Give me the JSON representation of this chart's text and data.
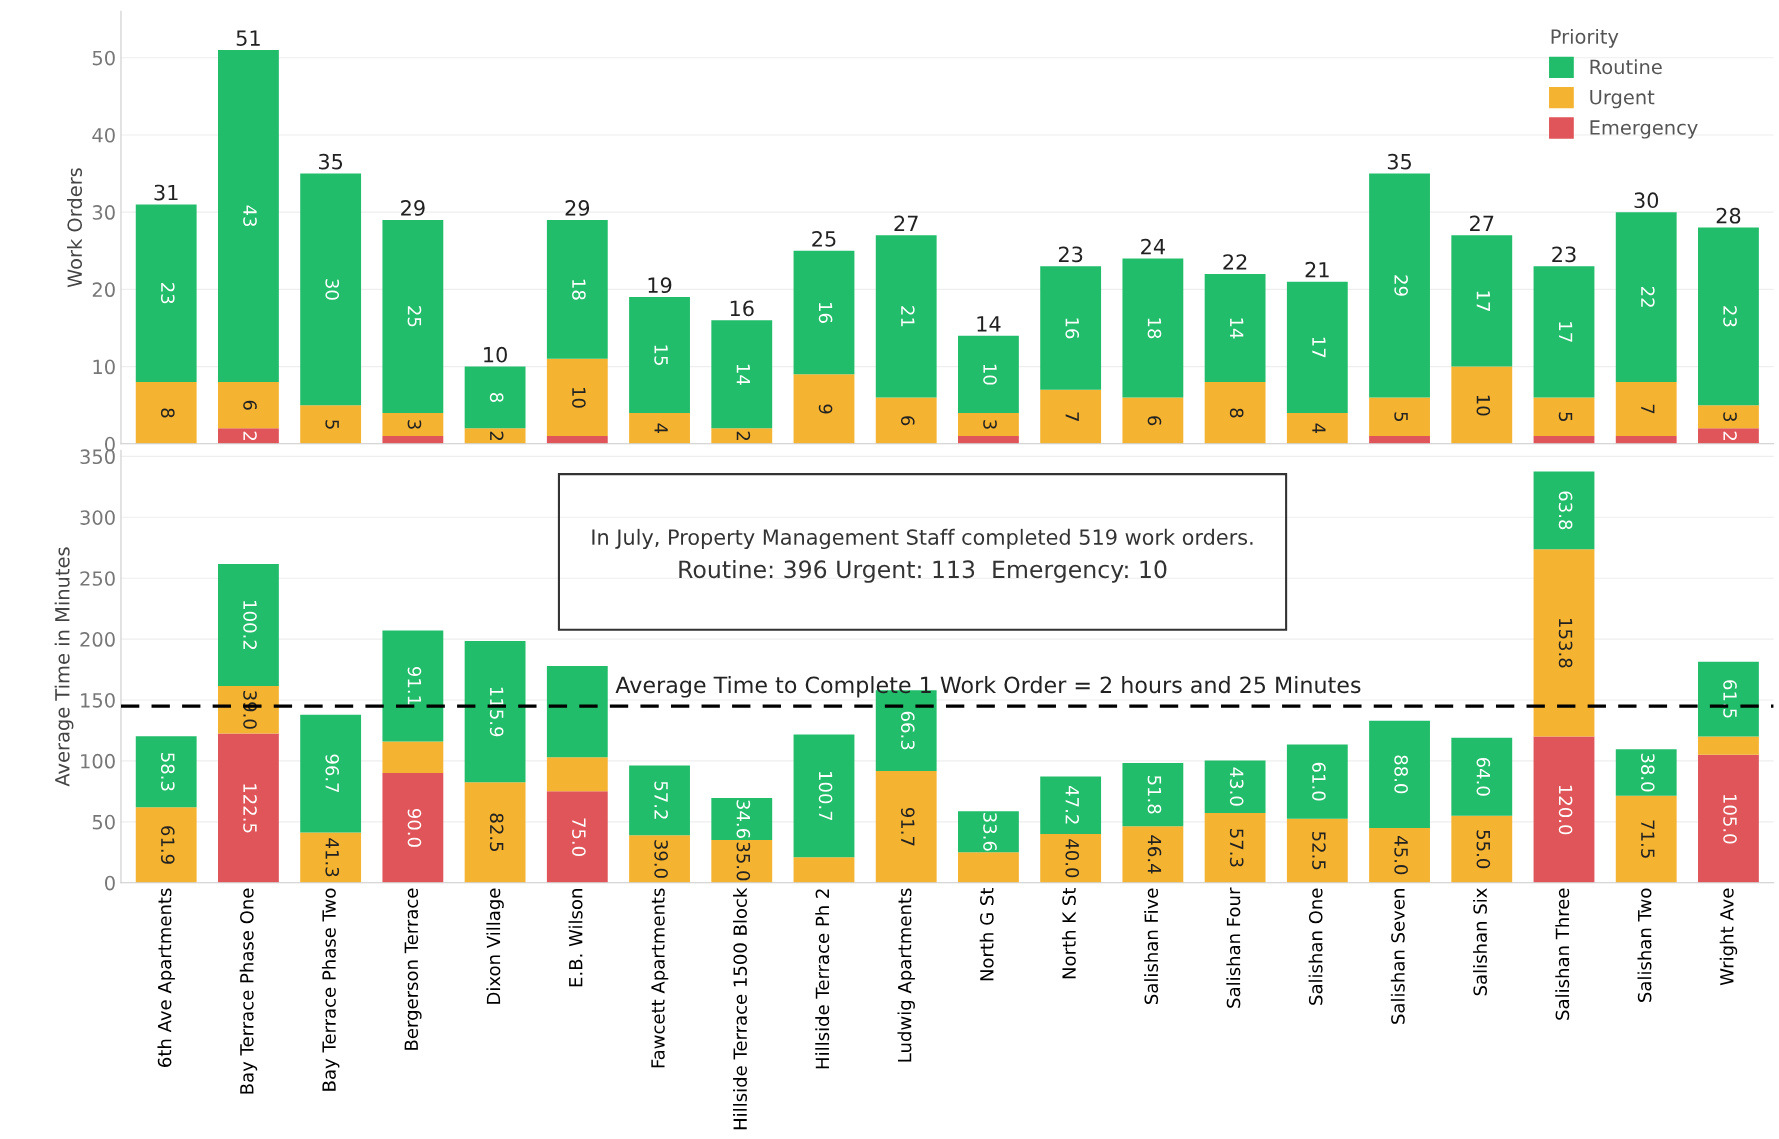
{
  "chart_data": [
    {
      "type": "bar",
      "stacked": true,
      "ylabel": "Work Orders",
      "ylim": [
        0,
        56
      ],
      "yticks": [
        0,
        10,
        20,
        30,
        40,
        50
      ],
      "grid": "y",
      "legend": "top right",
      "legend_title": "Priority",
      "tick_labels": "y",
      "categories": [
        "6th Ave Apartments",
        "Bay Terrace Phase One",
        "Bay Terrace Phase Two",
        "Bergerson Terrace",
        "Dixon Village",
        "E.B. Wilson",
        "Fawcett Apartments",
        "Hillside Terrace 1500 Block",
        "Hillside Terrace Ph 2",
        "Ludwig Apartments",
        "North G St",
        "North K St",
        "Salishan Five",
        "Salishan Four",
        "Salishan One",
        "Salishan Seven",
        "Salishan Six",
        "Salishan Three",
        "Salishan Two",
        "Wright Ave"
      ],
      "series": [
        {
          "name": "Emergency",
          "color": "#e0555a",
          "values": [
            null,
            2,
            null,
            1,
            null,
            1,
            null,
            null,
            null,
            null,
            1,
            null,
            null,
            null,
            null,
            1,
            null,
            1,
            1,
            2
          ],
          "value_labels": [
            null,
            "2",
            null,
            null,
            null,
            null,
            null,
            null,
            null,
            null,
            null,
            null,
            null,
            null,
            null,
            null,
            null,
            null,
            null,
            "2"
          ]
        },
        {
          "name": "Urgent",
          "color": "#f4b331",
          "values": [
            8,
            6,
            5,
            3,
            2,
            10,
            4,
            2,
            9,
            6,
            3,
            7,
            6,
            8,
            4,
            5,
            10,
            5,
            7,
            3
          ],
          "value_labels": [
            "8",
            "6",
            "5",
            "3",
            "2",
            "10",
            "4",
            "2",
            "9",
            "6",
            "3",
            "7",
            "6",
            "8",
            "4",
            "5",
            "10",
            "5",
            "7",
            "3"
          ]
        },
        {
          "name": "Routine",
          "color": "#22bd6b",
          "values": [
            23,
            43,
            30,
            25,
            8,
            18,
            15,
            14,
            16,
            21,
            10,
            16,
            18,
            14,
            17,
            29,
            17,
            17,
            22,
            23
          ],
          "value_labels": [
            "23",
            "43",
            "30",
            "25",
            "8",
            "18",
            "15",
            "14",
            "16",
            "21",
            "10",
            "16",
            "18",
            "14",
            "17",
            "29",
            "17",
            "17",
            "22",
            "23"
          ]
        }
      ],
      "totals": [
        "31",
        "51",
        "35",
        "29",
        "10",
        "29",
        "19",
        "16",
        "25",
        "27",
        "14",
        "23",
        "24",
        "22",
        "21",
        "35",
        "27",
        "23",
        "30",
        "28"
      ]
    },
    {
      "type": "bar",
      "stacked": true,
      "ylabel": "Average Time in Minutes",
      "ylim": [
        0,
        355
      ],
      "yticks": [
        0,
        50,
        100,
        150,
        200,
        250,
        300,
        350
      ],
      "grid": "y",
      "categories": [
        "6th Ave Apartments",
        "Bay Terrace Phase One",
        "Bay Terrace Phase Two",
        "Bergerson Terrace",
        "Dixon Village",
        "E.B. Wilson",
        "Fawcett Apartments",
        "Hillside Terrace 1500 Block",
        "Hillside Terrace Ph 2",
        "Ludwig Apartments",
        "North G St",
        "North K St",
        "Salishan Five",
        "Salishan Four",
        "Salishan One",
        "Salishan Seven",
        "Salishan Six",
        "Salishan Three",
        "Salishan Two",
        "Wright Ave"
      ],
      "series": [
        {
          "color": "#e0555a",
          "values": [
            null,
            122.5,
            null,
            90.0,
            null,
            75.0,
            null,
            null,
            null,
            null,
            null,
            null,
            null,
            null,
            null,
            null,
            null,
            120.0,
            null,
            105.0
          ],
          "value_labels": [
            null,
            "122.5",
            null,
            "90.0",
            null,
            "75.0",
            null,
            null,
            null,
            null,
            null,
            null,
            null,
            null,
            null,
            null,
            null,
            "120.0",
            null,
            "105.0"
          ]
        },
        {
          "color": "#f4b331",
          "values": [
            61.9,
            39.0,
            41.3,
            26,
            82.5,
            28,
            39.0,
            35.0,
            21,
            91.7,
            25,
            40.0,
            46.4,
            57.3,
            52.5,
            45.0,
            55.0,
            153.8,
            71.5,
            15
          ],
          "value_labels": [
            "61.9",
            "39.0",
            "41.3",
            null,
            "82.5",
            null,
            "39.0",
            "35.0",
            null,
            "91.7",
            null,
            "40.0",
            "46.4",
            "57.3",
            "52.5",
            "45.0",
            "55.0",
            "153.8",
            "71.5",
            null
          ]
        },
        {
          "color": "#22bd6b",
          "values": [
            58.3,
            100.2,
            96.7,
            91.1,
            115.9,
            75,
            57.2,
            34.6,
            100.7,
            66.3,
            33.6,
            47.2,
            51.8,
            43.0,
            61.0,
            88.0,
            64.0,
            63.8,
            38.0,
            61.5
          ],
          "value_labels": [
            "58.3",
            "100.2",
            "96.7",
            "91.1",
            "115.9",
            null,
            "57.2",
            "34.6",
            "100.7",
            "66.3",
            "33.6",
            "47.2",
            "51.8",
            "43.0",
            "61.0",
            "88.0",
            "64.0",
            "63.8",
            "38.0",
            "61.5"
          ]
        }
      ],
      "ref_lines": [
        {
          "axis": "y",
          "value": 145,
          "color": "#000000",
          "line_style": "dashed"
        }
      ],
      "annotations": [
        "In July, Property Management Staff completed 519 work orders.",
        "Routine: 396 Urgent: 113  Emergency: 10",
        {
          "text": "Average Time to Complete 1 Work Order = 2 hours and 25 Minutes",
          "y": 145
        }
      ]
    }
  ]
}
